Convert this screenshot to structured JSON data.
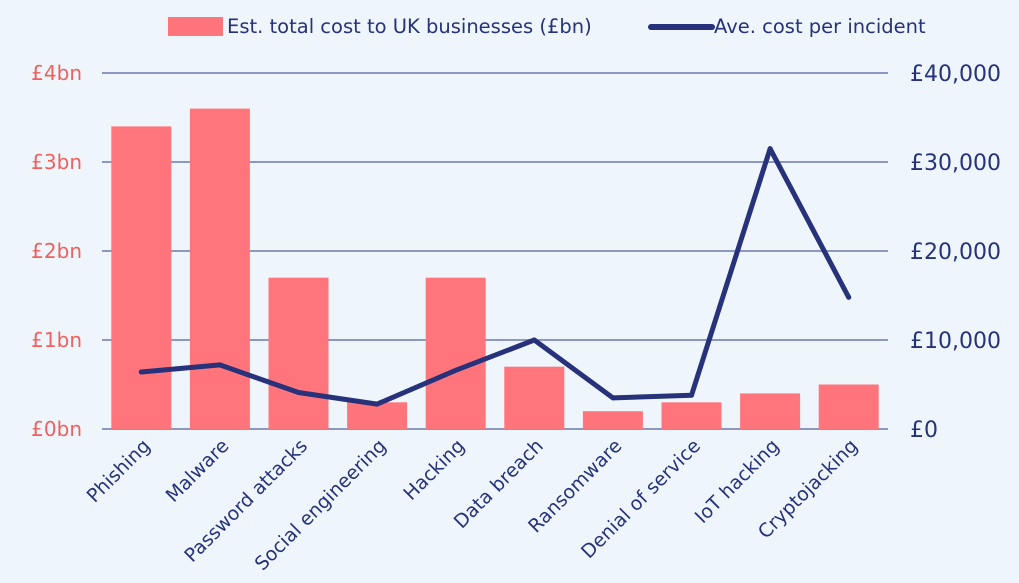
{
  "legend": {
    "bar_label": "Est. total cost to UK businesses (£bn)",
    "line_label": "Ave. cost per incident"
  },
  "colors": {
    "background": "#eef6fc",
    "bar": "#ff757b",
    "line": "#27327a",
    "grid": "#8c98c2",
    "left_axis_text": "#f0605f",
    "right_axis_text": "#27327a",
    "category_text": "#27327a"
  },
  "chart_data": {
    "type": "bar",
    "categories": [
      "Phishing",
      "Malware",
      "Password attacks",
      "Social engineering",
      "Hacking",
      "Data breach",
      "Ransomware",
      "Denial of service",
      "IoT hacking",
      "Cryptojacking"
    ],
    "series": [
      {
        "name": "Est. total cost to UK businesses (£bn)",
        "type": "bar",
        "axis": "left",
        "values": [
          3.4,
          3.6,
          1.7,
          0.3,
          1.7,
          0.7,
          0.2,
          0.3,
          0.4,
          0.5
        ]
      },
      {
        "name": "Ave. cost per incident",
        "type": "line",
        "axis": "right",
        "values": [
          6400,
          7200,
          4100,
          2800,
          6600,
          10000,
          3500,
          3800,
          31500,
          14800
        ]
      }
    ],
    "left_axis": {
      "ylim": [
        0,
        4
      ],
      "ticks": [
        0,
        1,
        2,
        3,
        4
      ],
      "tick_labels": [
        "£0bn",
        "£1bn",
        "£2bn",
        "£3bn",
        "£4bn"
      ]
    },
    "right_axis": {
      "ylim": [
        0,
        40000
      ],
      "ticks": [
        0,
        10000,
        20000,
        30000,
        40000
      ],
      "tick_labels": [
        "£0",
        "£10,000",
        "£20,000",
        "£30,000",
        "£40,000"
      ]
    },
    "grid": true,
    "legend_position": "top"
  }
}
